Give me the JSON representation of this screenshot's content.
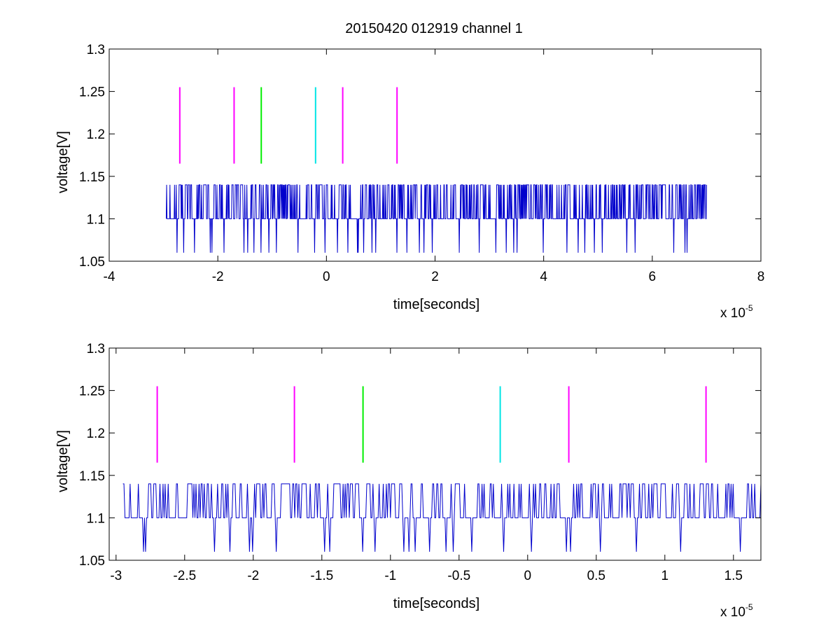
{
  "figure": {
    "title": "20150420 012919 channel 1"
  },
  "chart_data": [
    {
      "type": "line",
      "title": "20150420 012919 channel 1",
      "xlabel": "time[seconds]",
      "ylabel": "voltage[V]",
      "x_multiplier": {
        "base": "x 10",
        "exp": "-5"
      },
      "xlim": [
        -4,
        8
      ],
      "ylim": [
        1.05,
        1.3
      ],
      "xticks": [
        -4,
        -2,
        0,
        2,
        4,
        6,
        8
      ],
      "xtick_labels": [
        "-4",
        "-2",
        "0",
        "2",
        "4",
        "6",
        "8"
      ],
      "yticks": [
        1.05,
        1.1,
        1.15,
        1.2,
        1.25,
        1.3
      ],
      "ytick_labels": [
        "1.05",
        "1.1",
        "1.15",
        "1.2",
        "1.25",
        "1.3"
      ],
      "grid": false,
      "signal": {
        "color": "#0000cc",
        "x_range": [
          -2.95,
          7.0
        ],
        "levels": [
          1.06,
          1.1,
          1.14
        ],
        "baseline": 1.1
      },
      "markers": [
        {
          "x": -2.7,
          "color": "#ff00ff",
          "y_range": [
            1.165,
            1.255
          ]
        },
        {
          "x": -1.7,
          "color": "#ff00ff",
          "y_range": [
            1.165,
            1.255
          ]
        },
        {
          "x": -1.2,
          "color": "#00ee00",
          "y_range": [
            1.165,
            1.255
          ]
        },
        {
          "x": -0.2,
          "color": "#00e5e5",
          "y_range": [
            1.165,
            1.255
          ]
        },
        {
          "x": 0.3,
          "color": "#ff00ff",
          "y_range": [
            1.165,
            1.255
          ]
        },
        {
          "x": 1.3,
          "color": "#ff00ff",
          "y_range": [
            1.165,
            1.255
          ]
        }
      ]
    },
    {
      "type": "line",
      "title": "",
      "xlabel": "time[seconds]",
      "ylabel": "voltage[V]",
      "x_multiplier": {
        "base": "x 10",
        "exp": "-5"
      },
      "xlim": [
        -3.05,
        1.7
      ],
      "ylim": [
        1.05,
        1.3
      ],
      "xticks": [
        -3,
        -2.5,
        -2,
        -1.5,
        -1,
        -0.5,
        0,
        0.5,
        1,
        1.5
      ],
      "xtick_labels": [
        "-3",
        "-2.5",
        "-2",
        "-1.5",
        "-1",
        "-0.5",
        "0",
        "0.5",
        "1",
        "1.5"
      ],
      "yticks": [
        1.05,
        1.1,
        1.15,
        1.2,
        1.25,
        1.3
      ],
      "ytick_labels": [
        "1.05",
        "1.1",
        "1.15",
        "1.2",
        "1.25",
        "1.3"
      ],
      "grid": false,
      "signal": {
        "color": "#0000cc",
        "x_range": [
          -2.95,
          1.7
        ],
        "levels": [
          1.06,
          1.1,
          1.14
        ],
        "baseline": 1.1
      },
      "markers": [
        {
          "x": -2.7,
          "color": "#ff00ff",
          "y_range": [
            1.165,
            1.255
          ]
        },
        {
          "x": -1.7,
          "color": "#ff00ff",
          "y_range": [
            1.165,
            1.255
          ]
        },
        {
          "x": -1.2,
          "color": "#00ee00",
          "y_range": [
            1.165,
            1.255
          ]
        },
        {
          "x": -0.2,
          "color": "#00e5e5",
          "y_range": [
            1.165,
            1.255
          ]
        },
        {
          "x": 0.3,
          "color": "#ff00ff",
          "y_range": [
            1.165,
            1.255
          ]
        },
        {
          "x": 1.3,
          "color": "#ff00ff",
          "y_range": [
            1.165,
            1.255
          ]
        }
      ]
    }
  ]
}
